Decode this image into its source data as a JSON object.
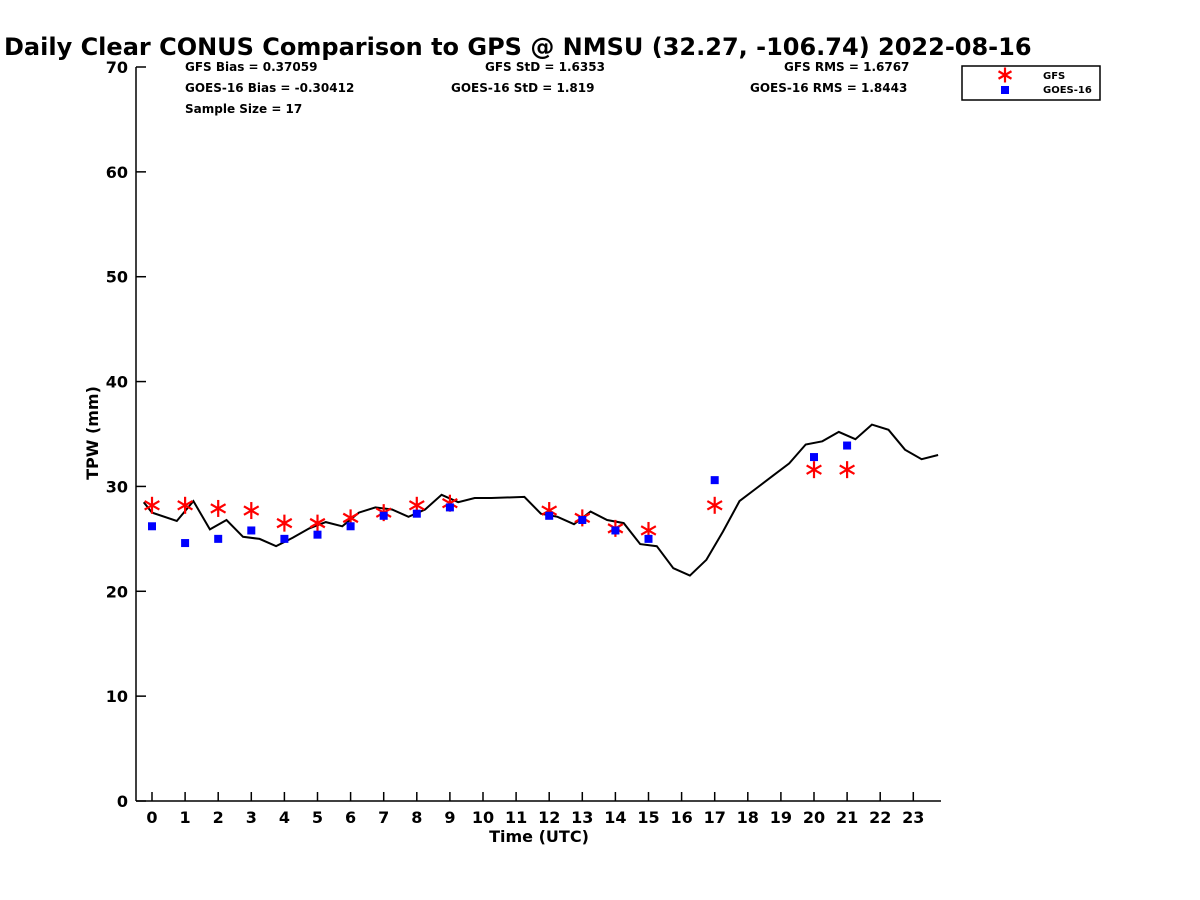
{
  "chart_data": {
    "type": "scatter",
    "title": "Daily Clear CONUS Comparison to GPS @ NMSU (32.27, -106.74) 2022-08-16",
    "xlabel": "Time (UTC)",
    "ylabel": "TPW (mm)",
    "xlim": [
      -0.5,
      23.8
    ],
    "ylim": [
      0,
      70
    ],
    "x_ticks": [
      0,
      1,
      2,
      3,
      4,
      5,
      6,
      7,
      8,
      9,
      10,
      11,
      12,
      13,
      14,
      15,
      16,
      17,
      18,
      19,
      20,
      21,
      22,
      23
    ],
    "x_tick_labels": [
      "0",
      "1",
      "2",
      "3",
      "4",
      "5",
      "6",
      "7",
      "8",
      "9",
      "10",
      "11",
      "12",
      "13",
      "14",
      "15",
      "16",
      "17",
      "18",
      "19",
      "20",
      "21",
      "22",
      "23"
    ],
    "y_ticks": [
      0,
      10,
      20,
      30,
      40,
      50,
      60,
      70
    ],
    "y_tick_labels": [
      "0",
      "10",
      "20",
      "30",
      "40",
      "50",
      "60",
      "70"
    ],
    "grid": false,
    "legend_position": "top-right",
    "stats": {
      "gfs_bias": "GFS Bias = 0.37059",
      "gfs_std": "GFS StD = 1.6353",
      "gfs_rms": "GFS RMS = 1.6767",
      "goes_bias": "GOES-16 Bias = -0.30412",
      "goes_std": "GOES-16 StD = 1.819",
      "goes_rms": "GOES-16 RMS = 1.8443",
      "sample_size": "Sample Size = 17"
    },
    "series": [
      {
        "name": "GPS",
        "style": "line",
        "color": "#000000",
        "x": [
          -0.25,
          0,
          0.75,
          1.25,
          1.75,
          2.25,
          2.75,
          3.25,
          3.75,
          4.25,
          4.75,
          5.25,
          5.75,
          6.25,
          6.75,
          7.25,
          7.75,
          8.25,
          8.75,
          9.25,
          9.75,
          10.25,
          11.25,
          11.75,
          12.25,
          12.75,
          13.25,
          13.75,
          14.25,
          14.75,
          15.25,
          15.75,
          16.25,
          16.75,
          17.25,
          17.75,
          18.25,
          18.75,
          19.25,
          19.75,
          20.25,
          20.75,
          21.25,
          21.75,
          22.25,
          22.75,
          23.25,
          23.75
        ],
        "y": [
          28.5,
          27.5,
          26.7,
          28.6,
          25.9,
          26.8,
          25.2,
          25.0,
          24.3,
          25.1,
          26.0,
          26.6,
          26.2,
          27.5,
          28.0,
          27.8,
          27.1,
          27.8,
          29.2,
          28.5,
          28.9,
          28.9,
          29.0,
          27.4,
          27.1,
          26.4,
          27.6,
          26.8,
          26.5,
          24.5,
          24.3,
          22.2,
          21.5,
          23.0,
          25.7,
          28.6,
          29.8,
          31.0,
          32.2,
          34.0,
          34.3,
          35.2,
          34.5,
          35.9,
          35.4,
          33.5,
          32.6,
          33.0
        ]
      },
      {
        "name": "GFS",
        "style": "asterisk",
        "color": "#ff0000",
        "x": [
          0,
          1,
          2,
          3,
          4,
          5,
          6,
          7,
          8,
          9,
          12,
          13,
          14,
          15,
          17,
          20,
          21
        ],
        "y": [
          28.2,
          28.2,
          27.9,
          27.7,
          26.5,
          26.5,
          27.0,
          27.5,
          28.2,
          28.4,
          27.7,
          27.0,
          26.0,
          25.8,
          28.2,
          31.6,
          31.6
        ]
      },
      {
        "name": "GOES-16",
        "style": "square",
        "color": "#0000ff",
        "x": [
          0,
          1,
          2,
          3,
          4,
          5,
          6,
          7,
          8,
          9,
          12,
          13,
          14,
          15,
          17,
          20,
          21
        ],
        "y": [
          26.2,
          24.6,
          25.0,
          25.8,
          25.0,
          25.4,
          26.2,
          27.2,
          27.4,
          28.0,
          27.2,
          26.8,
          25.8,
          25.0,
          30.6,
          32.8,
          33.9
        ]
      }
    ]
  }
}
